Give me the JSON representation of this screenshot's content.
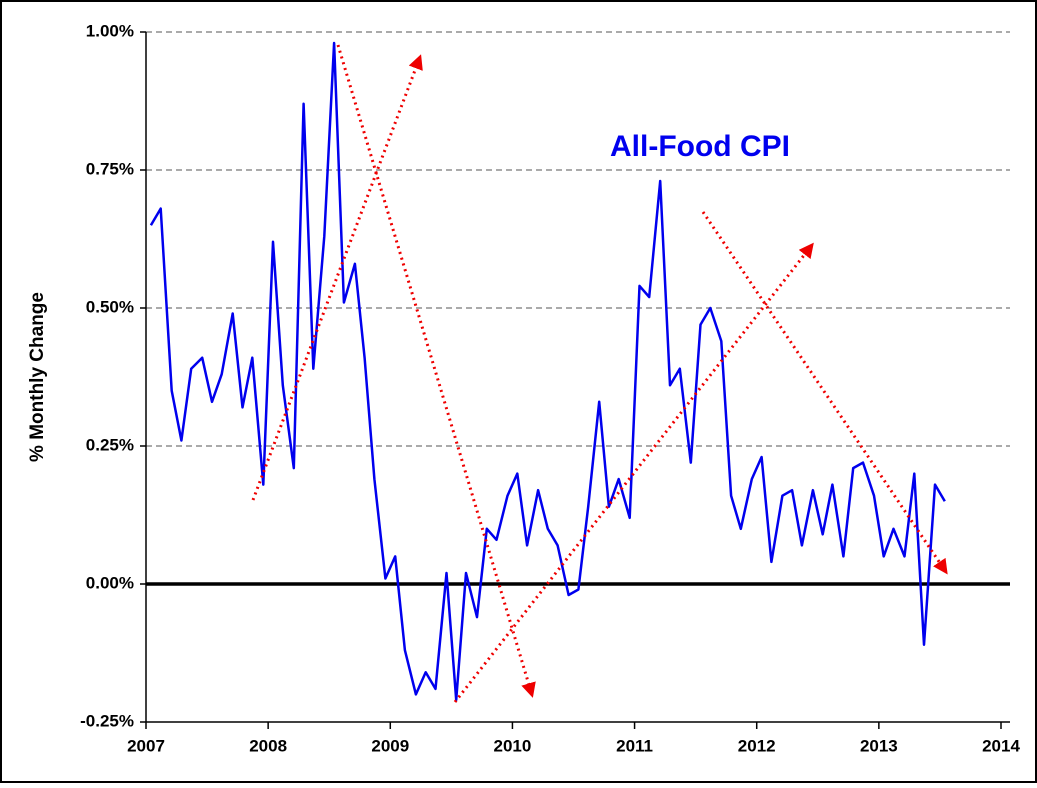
{
  "chart_data": {
    "type": "line",
    "title": "All-Food  CPI",
    "y_label": "% Monthly Change",
    "xlim": [
      2007,
      2014
    ],
    "xticks": [
      2007,
      2008,
      2009,
      2010,
      2011,
      2012,
      2013,
      2014
    ],
    "ylim": [
      -0.25,
      1.0
    ],
    "yticks": [
      {
        "value": -0.25,
        "label": "-0.25%"
      },
      {
        "value": 0,
        "label": "0.00%"
      },
      {
        "value": 0.25,
        "label": "0.25%"
      },
      {
        "value": 0.5,
        "label": "0.50%"
      },
      {
        "value": 0.75,
        "label": "0.75%"
      },
      {
        "value": 1.0,
        "label": "1.00%"
      }
    ],
    "grid": true,
    "x": [
      2007.04,
      2007.12,
      2007.21,
      2007.29,
      2007.37,
      2007.46,
      2007.54,
      2007.62,
      2007.71,
      2007.79,
      2007.87,
      2007.96,
      2008.04,
      2008.12,
      2008.21,
      2008.29,
      2008.37,
      2008.46,
      2008.54,
      2008.62,
      2008.71,
      2008.79,
      2008.87,
      2008.96,
      2009.04,
      2009.12,
      2009.21,
      2009.29,
      2009.37,
      2009.46,
      2009.54,
      2009.62,
      2009.71,
      2009.79,
      2009.87,
      2009.96,
      2010.04,
      2010.12,
      2010.21,
      2010.29,
      2010.37,
      2010.46,
      2010.54,
      2010.62,
      2010.71,
      2010.79,
      2010.87,
      2010.96,
      2011.04,
      2011.12,
      2011.21,
      2011.29,
      2011.37,
      2011.46,
      2011.54,
      2011.62,
      2011.71,
      2011.79,
      2011.87,
      2011.96,
      2012.04,
      2012.12,
      2012.21,
      2012.29,
      2012.37,
      2012.46,
      2012.54,
      2012.62,
      2012.71,
      2012.79,
      2012.87,
      2012.96,
      2013.04,
      2013.12,
      2013.21,
      2013.29,
      2013.37,
      2013.46,
      2013.54
    ],
    "series": [
      {
        "color": "#0000ee",
        "values": [
          0.65,
          0.68,
          0.35,
          0.26,
          0.39,
          0.41,
          0.33,
          0.38,
          0.49,
          0.32,
          0.41,
          0.18,
          0.62,
          0.36,
          0.21,
          0.87,
          0.39,
          0.63,
          0.98,
          0.51,
          0.58,
          0.41,
          0.19,
          0.01,
          0.05,
          -0.12,
          -0.2,
          -0.16,
          -0.19,
          0.02,
          -0.21,
          0.02,
          -0.06,
          0.1,
          0.08,
          0.16,
          0.2,
          0.07,
          0.17,
          0.1,
          0.07,
          -0.02,
          -0.01,
          0.14,
          0.33,
          0.14,
          0.19,
          0.12,
          0.54,
          0.52,
          0.73,
          0.36,
          0.39,
          0.22,
          0.47,
          0.5,
          0.44,
          0.16,
          0.1,
          0.19,
          0.23,
          0.04,
          0.16,
          0.17,
          0.07,
          0.17,
          0.09,
          0.18,
          0.05,
          0.21,
          0.22,
          0.16,
          0.05,
          0.1,
          0.05,
          0.2,
          -0.11,
          0.18,
          0.15
        ]
      }
    ]
  }
}
